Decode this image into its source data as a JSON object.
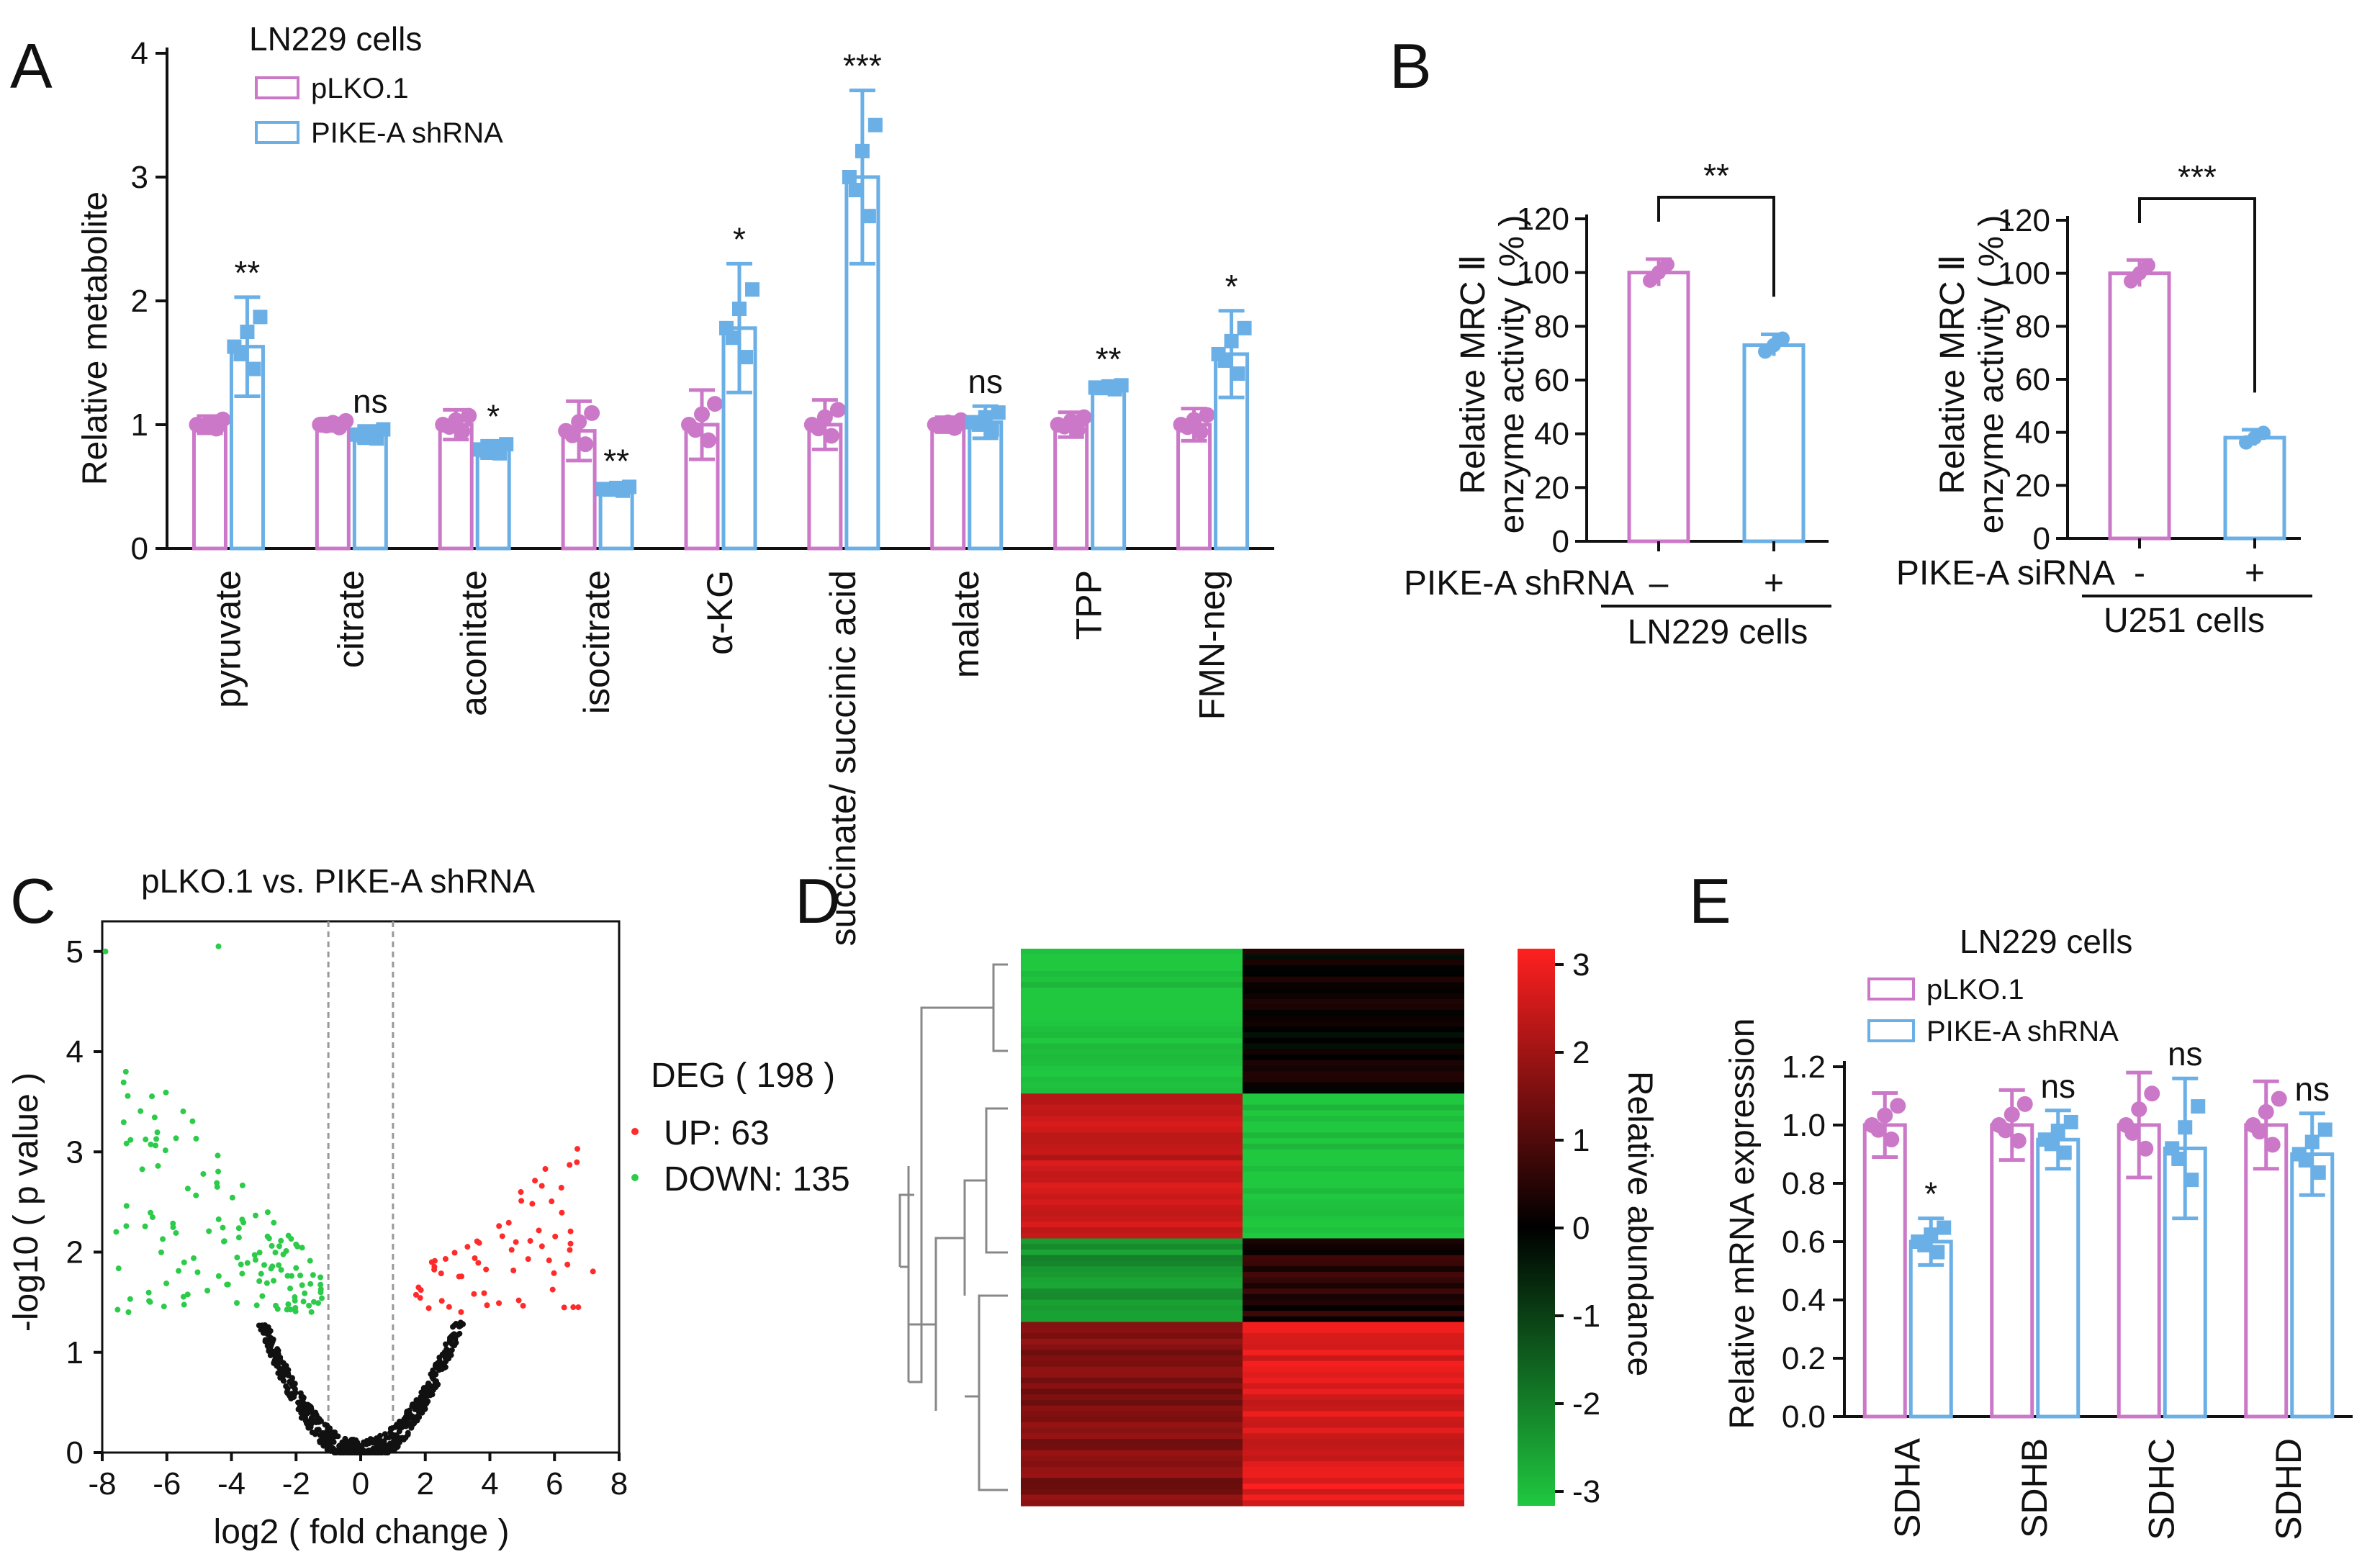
{
  "colors": {
    "pink": "#CC78C8",
    "blue": "#6AAFE6",
    "axis": "#111111",
    "up": "#FF2A2A",
    "down": "#2DCB4A",
    "ns": "#111111"
  },
  "panelA": {
    "letter": "A",
    "subtitle": "LN229 cells",
    "legend": [
      "pLKO.1",
      "PIKE-A shRNA"
    ],
    "chart_data": {
      "type": "bar",
      "title": "LN229 cells",
      "ylabel": "Relative metabolite",
      "ylim": [
        0,
        4
      ],
      "yticks": [
        0,
        1,
        2,
        3,
        4
      ],
      "categories": [
        "pyruvate",
        "citrate",
        "aconitate",
        "isocitrate",
        "α-KG",
        "succinate/ succinic acid",
        "malate",
        "TPP",
        "FMN-neg"
      ],
      "series": [
        {
          "name": "pLKO.1",
          "values": [
            1.0,
            1.0,
            1.0,
            0.95,
            1.0,
            1.0,
            1.0,
            1.0,
            1.0
          ],
          "errors": [
            0.07,
            0.05,
            0.12,
            0.24,
            0.28,
            0.2,
            0.06,
            0.1,
            0.13
          ]
        },
        {
          "name": "PIKE-A shRNA",
          "values": [
            1.63,
            0.92,
            0.8,
            0.48,
            1.78,
            3.0,
            1.02,
            1.3,
            1.57
          ],
          "errors": [
            0.4,
            0.07,
            0.07,
            0.03,
            0.52,
            0.7,
            0.13,
            0.03,
            0.35
          ]
        }
      ],
      "significance": [
        "**",
        "ns",
        "*",
        "**",
        "*",
        "***",
        "ns",
        "**",
        "*"
      ]
    }
  },
  "panelB": {
    "letter": "B",
    "charts": [
      {
        "type": "bar",
        "ylabel_line1": "Relative MRC Ⅱ",
        "ylabel_line2": "enzyme activity ( % )",
        "ylim": [
          0,
          120
        ],
        "yticks": [
          0,
          20,
          40,
          60,
          80,
          100,
          120
        ],
        "treatment_label": "PIKE-A shRNA",
        "categories": [
          "–",
          "+"
        ],
        "values": [
          100,
          73
        ],
        "errors": [
          5,
          4
        ],
        "significance": "**",
        "group_label": "LN229 cells"
      },
      {
        "type": "bar",
        "ylabel_line1": "Relative MRC Ⅱ",
        "ylabel_line2": "enzyme activity ( % )",
        "ylim": [
          0,
          120
        ],
        "yticks": [
          0,
          20,
          40,
          60,
          80,
          100,
          120
        ],
        "treatment_label": "PIKE-A siRNA",
        "categories": [
          "-",
          "+"
        ],
        "values": [
          100,
          38
        ],
        "errors": [
          5,
          3
        ],
        "significance": "***",
        "group_label": "U251 cells"
      }
    ]
  },
  "panelC": {
    "letter": "C",
    "chart_data": {
      "type": "scatter",
      "title": "pLKO.1  vs.  PIKE-A shRNA",
      "xlabel": "log2 ( fold  change )",
      "ylabel": "-log10 ( p value )",
      "xlim": [
        -8,
        8
      ],
      "ylim": [
        0,
        5.3
      ],
      "xticks": [
        -8,
        -6,
        -4,
        -2,
        0,
        2,
        4,
        6,
        8
      ],
      "yticks": [
        0,
        1,
        2,
        3,
        4,
        5
      ],
      "thresholds_x": [
        -1,
        1
      ],
      "legend_title": "DEG ( 198 )",
      "legend": [
        {
          "label": "UP: 63",
          "count": 63
        },
        {
          "label": "DOWN: 135",
          "count": 135
        }
      ]
    }
  },
  "panelD": {
    "letter": "D",
    "chart_data": {
      "type": "heatmap",
      "colorbar_label": "Relative abundance",
      "colorbar_ticks": [
        3,
        2,
        1,
        0,
        -1,
        -2,
        -3
      ],
      "columns": 2,
      "blocks": [
        {
          "col1": -3.0,
          "col2": 0.1,
          "rows": 26
        },
        {
          "col1": 2.3,
          "col2": -3.0,
          "rows": 26
        },
        {
          "col1": -2.2,
          "col2": 0.4,
          "rows": 15
        },
        {
          "col1": 1.5,
          "col2": 2.6,
          "rows": 33
        }
      ]
    }
  },
  "panelE": {
    "letter": "E",
    "subtitle": "LN229 cells",
    "legend": [
      "pLKO.1",
      "PIKE-A shRNA"
    ],
    "chart_data": {
      "type": "bar",
      "title": "LN229 cells",
      "ylabel": "Relative mRNA expression",
      "ylim": [
        0,
        1.2
      ],
      "yticks": [
        0.0,
        0.2,
        0.4,
        0.6,
        0.8,
        1.0,
        1.2
      ],
      "categories": [
        "SDHA",
        "SDHB",
        "SDHC",
        "SDHD"
      ],
      "series": [
        {
          "name": "pLKO.1",
          "values": [
            1.0,
            1.0,
            1.0,
            1.0
          ],
          "errors": [
            0.11,
            0.12,
            0.18,
            0.15
          ]
        },
        {
          "name": "PIKE-A shRNA",
          "values": [
            0.6,
            0.95,
            0.92,
            0.9
          ],
          "errors": [
            0.08,
            0.1,
            0.24,
            0.14
          ]
        }
      ],
      "significance": [
        "*",
        "ns",
        "ns",
        "ns"
      ]
    }
  }
}
